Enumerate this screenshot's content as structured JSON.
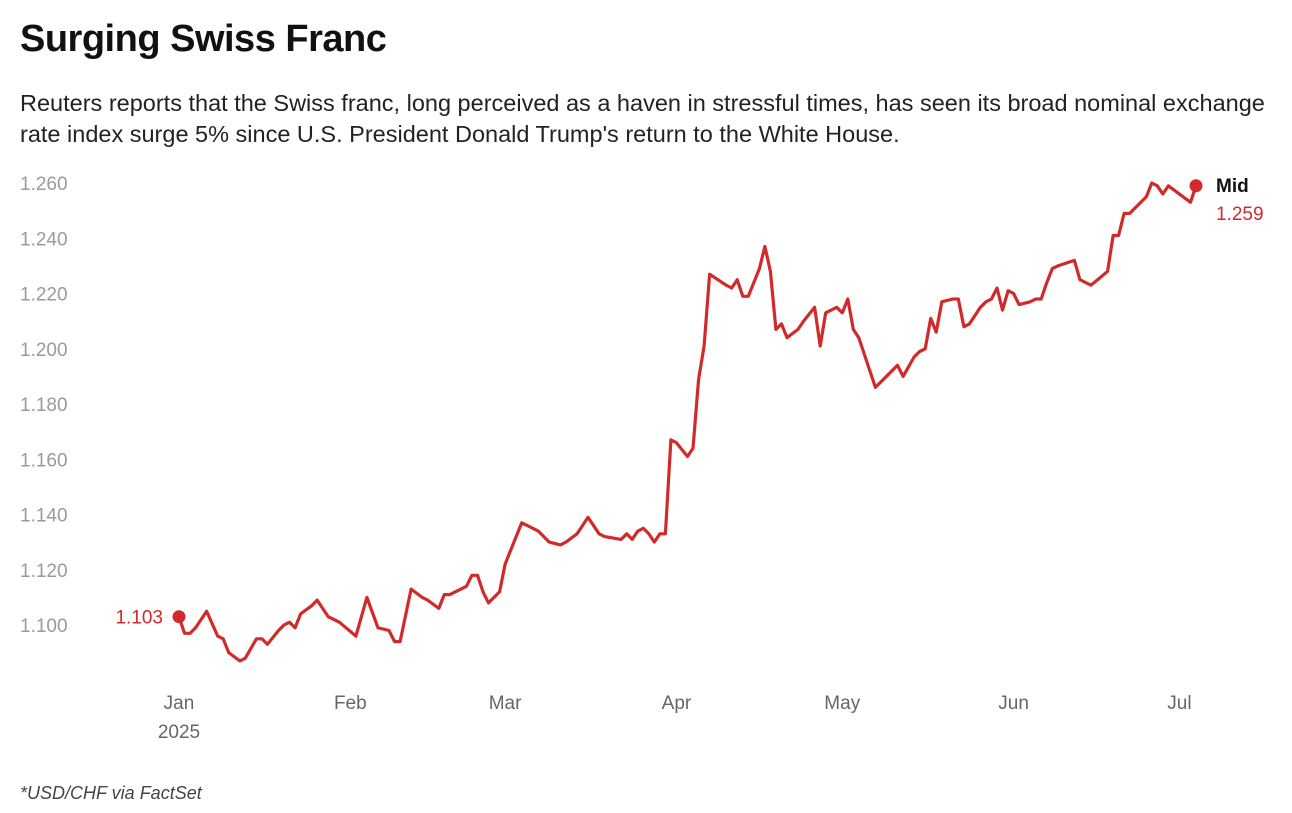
{
  "title": "Surging Swiss Franc",
  "subtitle": "Reuters reports that the Swiss franc, long perceived as a haven in stressful times, has seen its broad nominal exchange rate index surge 5% since U.S. President Donald Trump's return to the White House.",
  "footnote": "*USD/CHF via FactSet",
  "colors": {
    "line": "#d12a2a",
    "text": "#111111",
    "tick": "#9a9a9a"
  },
  "chart_data": {
    "type": "line",
    "title": "Surging Swiss Franc",
    "xlabel": "",
    "ylabel": "",
    "ylim": [
      1.08,
      1.265
    ],
    "y_ticks": [
      "1.100",
      "1.120",
      "1.140",
      "1.160",
      "1.180",
      "1.200",
      "1.220",
      "1.240",
      "1.260"
    ],
    "x_ticks": [
      {
        "label": "Jan",
        "sublabel": "2025",
        "day": 0
      },
      {
        "label": "Feb",
        "sublabel": "",
        "day": 31
      },
      {
        "label": "Mar",
        "sublabel": "",
        "day": 59
      },
      {
        "label": "Apr",
        "sublabel": "",
        "day": 90
      },
      {
        "label": "May",
        "sublabel": "",
        "day": 120
      },
      {
        "label": "Jun",
        "sublabel": "",
        "day": 151
      },
      {
        "label": "Jul",
        "sublabel": "",
        "day": 181
      }
    ],
    "grid": false,
    "legend": "line-end label",
    "series": [
      {
        "name": "Mid",
        "start_label": "1.103",
        "end_label": "1.259",
        "points": [
          [
            0,
            1.103
          ],
          [
            1,
            1.097
          ],
          [
            2,
            1.097
          ],
          [
            3,
            1.099
          ],
          [
            5,
            1.105
          ],
          [
            7,
            1.096
          ],
          [
            8,
            1.095
          ],
          [
            9,
            1.09
          ],
          [
            11,
            1.087
          ],
          [
            12,
            1.088
          ],
          [
            14,
            1.095
          ],
          [
            15,
            1.095
          ],
          [
            16,
            1.093
          ],
          [
            18,
            1.098
          ],
          [
            19,
            1.1
          ],
          [
            20,
            1.101
          ],
          [
            21,
            1.099
          ],
          [
            22,
            1.104
          ],
          [
            24,
            1.107
          ],
          [
            25,
            1.109
          ],
          [
            27,
            1.103
          ],
          [
            29,
            1.101
          ],
          [
            32,
            1.096
          ],
          [
            34,
            1.11
          ],
          [
            36,
            1.099
          ],
          [
            38,
            1.098
          ],
          [
            39,
            1.094
          ],
          [
            40,
            1.094
          ],
          [
            42,
            1.113
          ],
          [
            44,
            1.11
          ],
          [
            45,
            1.109
          ],
          [
            47,
            1.106
          ],
          [
            48,
            1.111
          ],
          [
            49,
            1.111
          ],
          [
            51,
            1.113
          ],
          [
            52,
            1.114
          ],
          [
            53,
            1.118
          ],
          [
            54,
            1.118
          ],
          [
            55,
            1.112
          ],
          [
            56,
            1.108
          ],
          [
            58,
            1.112
          ],
          [
            59,
            1.122
          ],
          [
            60,
            1.127
          ],
          [
            62,
            1.137
          ],
          [
            65,
            1.134
          ],
          [
            67,
            1.13
          ],
          [
            69,
            1.129
          ],
          [
            70,
            1.13
          ],
          [
            72,
            1.133
          ],
          [
            73,
            1.136
          ],
          [
            74,
            1.139
          ],
          [
            76,
            1.133
          ],
          [
            77,
            1.132
          ],
          [
            80,
            1.131
          ],
          [
            81,
            1.133
          ],
          [
            82,
            1.131
          ],
          [
            83,
            1.134
          ],
          [
            84,
            1.135
          ],
          [
            85,
            1.133
          ],
          [
            86,
            1.13
          ],
          [
            87,
            1.133
          ],
          [
            88,
            1.133
          ],
          [
            89,
            1.167
          ],
          [
            90,
            1.166
          ],
          [
            92,
            1.161
          ],
          [
            93,
            1.164
          ],
          [
            94,
            1.189
          ],
          [
            95,
            1.201
          ],
          [
            96,
            1.227
          ],
          [
            99,
            1.223
          ],
          [
            100,
            1.222
          ],
          [
            101,
            1.225
          ],
          [
            102,
            1.219
          ],
          [
            103,
            1.219
          ],
          [
            105,
            1.229
          ],
          [
            106,
            1.237
          ],
          [
            107,
            1.228
          ],
          [
            108,
            1.207
          ],
          [
            109,
            1.209
          ],
          [
            110,
            1.204
          ],
          [
            112,
            1.207
          ],
          [
            113,
            1.21
          ],
          [
            115,
            1.215
          ],
          [
            116,
            1.201
          ],
          [
            117,
            1.213
          ],
          [
            118,
            1.214
          ],
          [
            119,
            1.215
          ],
          [
            120,
            1.213
          ],
          [
            121,
            1.218
          ],
          [
            122,
            1.207
          ],
          [
            123,
            1.204
          ],
          [
            126,
            1.186
          ],
          [
            130,
            1.194
          ],
          [
            131,
            1.19
          ],
          [
            133,
            1.197
          ],
          [
            134,
            1.199
          ],
          [
            135,
            1.2
          ],
          [
            136,
            1.211
          ],
          [
            137,
            1.206
          ],
          [
            138,
            1.217
          ],
          [
            140,
            1.218
          ],
          [
            141,
            1.218
          ],
          [
            142,
            1.208
          ],
          [
            143,
            1.209
          ],
          [
            144,
            1.212
          ],
          [
            145,
            1.215
          ],
          [
            146,
            1.217
          ],
          [
            147,
            1.218
          ],
          [
            148,
            1.222
          ],
          [
            149,
            1.214
          ],
          [
            150,
            1.221
          ],
          [
            151,
            1.22
          ],
          [
            152,
            1.216
          ],
          [
            154,
            1.217
          ],
          [
            155,
            1.218
          ],
          [
            156,
            1.218
          ],
          [
            157,
            1.224
          ],
          [
            158,
            1.229
          ],
          [
            159,
            1.23
          ],
          [
            162,
            1.232
          ],
          [
            163,
            1.225
          ],
          [
            165,
            1.223
          ],
          [
            168,
            1.228
          ],
          [
            169,
            1.241
          ],
          [
            170,
            1.241
          ],
          [
            171,
            1.249
          ],
          [
            172,
            1.249
          ],
          [
            173,
            1.251
          ],
          [
            175,
            1.255
          ],
          [
            176,
            1.26
          ],
          [
            177,
            1.259
          ],
          [
            178,
            1.256
          ],
          [
            179,
            1.259
          ],
          [
            183,
            1.253
          ],
          [
            184,
            1.259
          ]
        ]
      }
    ]
  }
}
